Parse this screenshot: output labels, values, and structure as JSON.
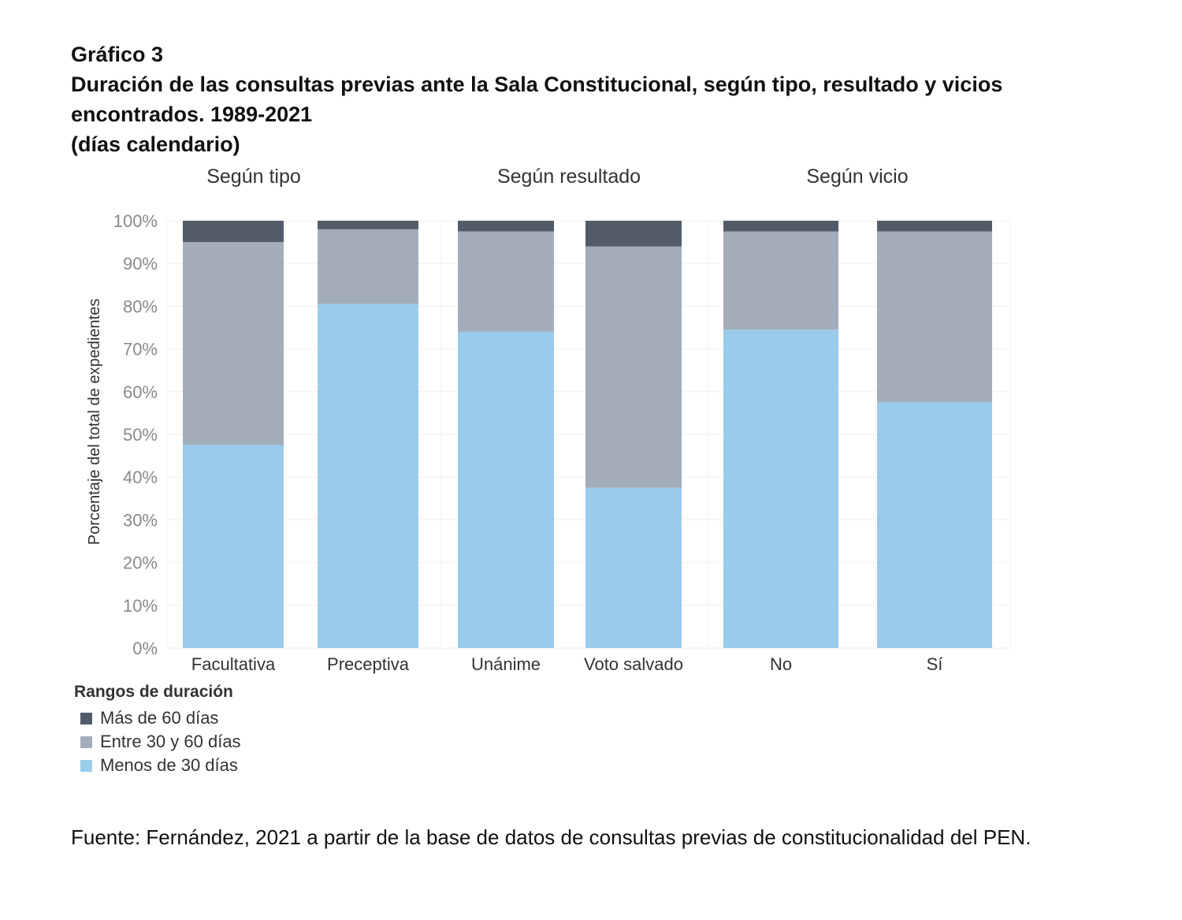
{
  "header": {
    "number": "Gráfico 3",
    "title": "Duración de las consultas previas ante la Sala Constitucional, según tipo, resultado y vicios encontrados. 1989-2021",
    "unit": "(días calendario)"
  },
  "chart_data": {
    "type": "bar",
    "stacked": true,
    "ylabel": "Porcentaje del total de expedientes",
    "ylim": [
      0,
      100
    ],
    "yticks": [
      "0%",
      "10%",
      "20%",
      "30%",
      "40%",
      "50%",
      "60%",
      "70%",
      "80%",
      "90%",
      "100%"
    ],
    "grid": true,
    "panels": [
      {
        "title": "Según tipo",
        "categories": [
          "Facultativa",
          "Preceptiva"
        ]
      },
      {
        "title": "Según resultado",
        "categories": [
          "Unánime",
          "Voto salvado"
        ]
      },
      {
        "title": "Según vicio",
        "categories": [
          "No",
          "Sí"
        ]
      }
    ],
    "categories": [
      "Facultativa",
      "Preceptiva",
      "Unánime",
      "Voto salvado",
      "No",
      "Sí"
    ],
    "series": [
      {
        "name": "Menos de 30 días",
        "color": "#99cbeb",
        "values": [
          47.5,
          80.5,
          74.0,
          37.5,
          74.5,
          57.5
        ]
      },
      {
        "name": "Entre 30 y 60 días",
        "color": "#a3adba",
        "values": [
          47.5,
          17.5,
          23.5,
          56.5,
          23.0,
          40.0
        ]
      },
      {
        "name": "Más de 60 días",
        "color": "#525c69",
        "values": [
          5.0,
          2.0,
          2.5,
          6.0,
          2.5,
          2.5
        ]
      }
    ],
    "legend": {
      "title": "Rangos de duración",
      "position": "bottom-left",
      "items": [
        "Más de 60 días",
        "Entre 30 y 60 días",
        "Menos de 30 días"
      ]
    }
  },
  "source": "Fuente: Fernández, 2021 a partir de la base de datos de consultas previas de constitucionalidad del PEN."
}
